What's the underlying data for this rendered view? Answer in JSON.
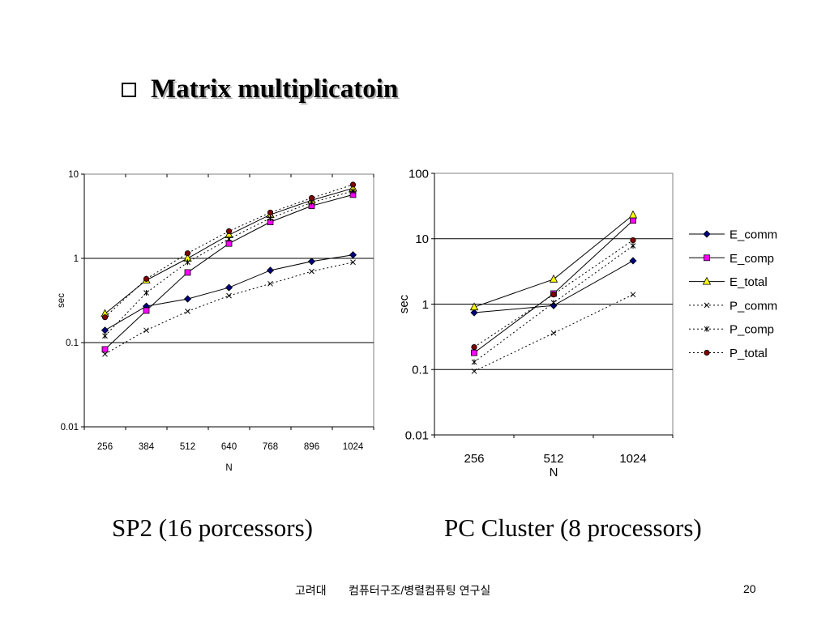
{
  "slide": {
    "title": "Matrix multiplicatoin",
    "caption_left": "SP2 (16 porcessors)",
    "caption_right": "PC Cluster (8 processors)",
    "footer_org": "고려대",
    "footer_lab": "컴퓨터구조/병렬컴퓨팅 연구실",
    "page_number": "20"
  },
  "chart_data": [
    {
      "type": "line",
      "title": "",
      "xlabel": "N",
      "ylabel": "sec",
      "yscale": "log",
      "ylim": [
        0.01,
        10
      ],
      "yticks": [
        "10",
        "1",
        "0.1",
        "0.01"
      ],
      "categories": [
        "256",
        "384",
        "512",
        "640",
        "768",
        "896",
        "1024"
      ],
      "legend": "none",
      "series": [
        {
          "name": "E_comm",
          "style": "solid",
          "marker": "diamond",
          "color": "#000080",
          "values": [
            0.14,
            0.27,
            0.33,
            0.45,
            0.72,
            0.92,
            1.1
          ]
        },
        {
          "name": "E_comp",
          "style": "solid",
          "marker": "square",
          "color": "#ff00ff",
          "values": [
            0.083,
            0.24,
            0.68,
            1.5,
            2.7,
            4.2,
            5.7
          ]
        },
        {
          "name": "E_total",
          "style": "solid",
          "marker": "triangle",
          "color": "#ffff00",
          "values": [
            0.22,
            0.55,
            1.0,
            1.9,
            3.3,
            4.9,
            6.8
          ]
        },
        {
          "name": "P_comm",
          "style": "dotted",
          "marker": "x",
          "color": "#000000",
          "values": [
            0.073,
            0.14,
            0.235,
            0.36,
            0.5,
            0.7,
            0.9
          ]
        },
        {
          "name": "P_comp",
          "style": "dotted",
          "marker": "asterisk",
          "color": "#000000",
          "values": [
            0.12,
            0.39,
            0.9,
            1.7,
            3.0,
            4.6,
            6.3
          ]
        },
        {
          "name": "P_total",
          "style": "dotted",
          "marker": "circle",
          "color": "#800000",
          "values": [
            0.2,
            0.57,
            1.15,
            2.1,
            3.5,
            5.2,
            7.5
          ]
        }
      ]
    },
    {
      "type": "line",
      "title": "",
      "xlabel": "N",
      "ylabel": "sec",
      "yscale": "log",
      "ylim": [
        0.01,
        100
      ],
      "yticks": [
        "100",
        "10",
        "1",
        "0.1",
        "0.01"
      ],
      "categories": [
        "256",
        "512",
        "1024"
      ],
      "legend": "right",
      "series": [
        {
          "name": "E_comm",
          "style": "solid",
          "marker": "diamond",
          "color": "#000080",
          "values": [
            0.74,
            0.95,
            4.6
          ]
        },
        {
          "name": "E_comp",
          "style": "solid",
          "marker": "square",
          "color": "#ff00ff",
          "values": [
            0.18,
            1.45,
            19
          ]
        },
        {
          "name": "E_total",
          "style": "solid",
          "marker": "triangle",
          "color": "#ffff00",
          "values": [
            0.9,
            2.4,
            23
          ]
        },
        {
          "name": "P_comm",
          "style": "dotted",
          "marker": "x",
          "color": "#000000",
          "values": [
            0.094,
            0.36,
            1.4
          ]
        },
        {
          "name": "P_comp",
          "style": "dotted",
          "marker": "asterisk",
          "color": "#000000",
          "values": [
            0.13,
            1.05,
            7.8
          ]
        },
        {
          "name": "P_total",
          "style": "dotted",
          "marker": "circle",
          "color": "#800000",
          "values": [
            0.22,
            1.4,
            9.5
          ]
        }
      ]
    }
  ]
}
